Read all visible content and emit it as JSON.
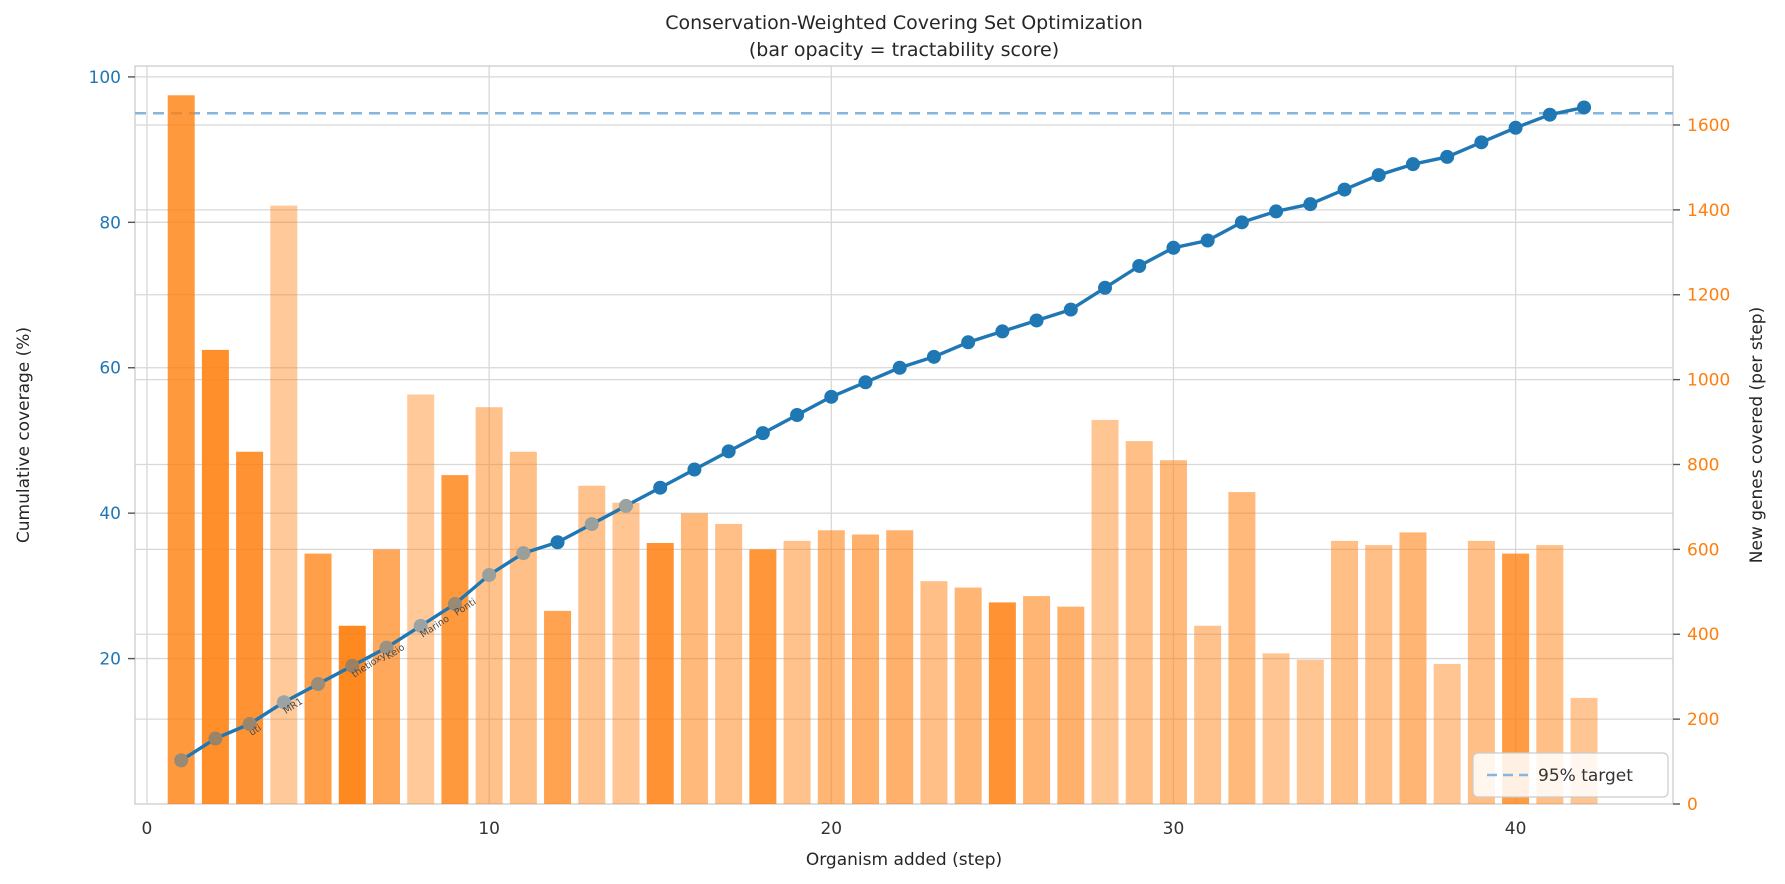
{
  "title": "Conservation-Weighted Covering Set Optimization",
  "subtitle": "(bar opacity = tractability score)",
  "axes": {
    "x": {
      "label": "Organism added (step)",
      "ticks": [
        0,
        10,
        20,
        30,
        40
      ],
      "min": -0.35,
      "max": 44.6
    },
    "y_left": {
      "label": "Cumulative coverage (%)",
      "ticks": [
        20,
        40,
        60,
        80,
        100
      ],
      "min": 0,
      "max": 101.5,
      "color": "#1f77b4"
    },
    "y_right": {
      "label": "New genes covered (per step)",
      "ticks": [
        0,
        200,
        400,
        600,
        800,
        1000,
        1200,
        1400,
        1600
      ],
      "min": 0,
      "max": 1739,
      "color": "#ff7f0e"
    }
  },
  "legend": {
    "label": "95% target",
    "swatch": "dashed-line"
  },
  "colors": {
    "line": "#1f77b4",
    "bar": "#ff7f0e",
    "target": "#86b5dd",
    "grid": "#d8d8d8",
    "spine": "#cfcfcf",
    "tick": "#555555",
    "x_tick_label": "#333333",
    "annotation": "#4a4a4a",
    "title_text": "#262626",
    "legend_border": "#cccccc",
    "legend_text": "#333333"
  },
  "chart_data": {
    "type": "combo-bar-line",
    "x": [
      1,
      2,
      3,
      4,
      5,
      6,
      7,
      8,
      9,
      10,
      11,
      12,
      13,
      14,
      15,
      16,
      17,
      18,
      19,
      20,
      21,
      22,
      23,
      24,
      25,
      26,
      27,
      28,
      29,
      30,
      31,
      32,
      33,
      34,
      35,
      36,
      37,
      38,
      39,
      40,
      41,
      42
    ],
    "series": [
      {
        "name": "New genes covered (per step)",
        "type": "bar",
        "axis": "right",
        "values": [
          1670,
          1070,
          830,
          1410,
          590,
          420,
          600,
          965,
          775,
          935,
          830,
          455,
          750,
          710,
          615,
          685,
          660,
          600,
          620,
          645,
          635,
          645,
          525,
          510,
          475,
          490,
          465,
          905,
          855,
          810,
          420,
          735,
          355,
          340,
          620,
          610,
          640,
          330,
          620,
          590,
          610,
          250
        ],
        "tractability_opacity": [
          0.8,
          0.88,
          0.85,
          0.42,
          0.75,
          0.92,
          0.68,
          0.42,
          0.8,
          0.48,
          0.5,
          0.72,
          0.48,
          0.45,
          0.85,
          0.55,
          0.5,
          0.82,
          0.48,
          0.58,
          0.62,
          0.62,
          0.5,
          0.58,
          0.85,
          0.58,
          0.62,
          0.45,
          0.5,
          0.55,
          0.48,
          0.55,
          0.45,
          0.45,
          0.5,
          0.5,
          0.58,
          0.45,
          0.5,
          0.78,
          0.5,
          0.45
        ]
      },
      {
        "name": "Cumulative coverage (%)",
        "type": "line",
        "axis": "left",
        "values": [
          6,
          9,
          11,
          14,
          16.5,
          19,
          21.5,
          24.5,
          27.5,
          31.5,
          34.5,
          36,
          38.5,
          41,
          43.5,
          46,
          48.5,
          51,
          53.5,
          56,
          58,
          60,
          61.5,
          63.5,
          65,
          66.5,
          68,
          71,
          74,
          76.5,
          77.5,
          80,
          81.5,
          82.5,
          84.5,
          86.5,
          88,
          89,
          91,
          93,
          94.8,
          95.8
        ]
      }
    ],
    "target_line": {
      "value": 95,
      "label": "95% target",
      "style": "dashed"
    },
    "annotations": [
      {
        "step": 3,
        "label": "uti"
      },
      {
        "step": 4,
        "label": "MR1"
      },
      {
        "step": 6,
        "label": "thetioxy"
      },
      {
        "step": 7,
        "label": "Keio"
      },
      {
        "step": 8,
        "label": "Marino"
      },
      {
        "step": 9,
        "label": "Ponti"
      }
    ],
    "title": "Conservation-Weighted Covering Set Optimization",
    "subtitle": "(bar opacity = tractability score)",
    "xlabel": "Organism added (step)",
    "ylabel_left": "Cumulative coverage (%)",
    "ylabel_right": "New genes covered (per step)",
    "grid": true,
    "legend_position": "lower right"
  }
}
